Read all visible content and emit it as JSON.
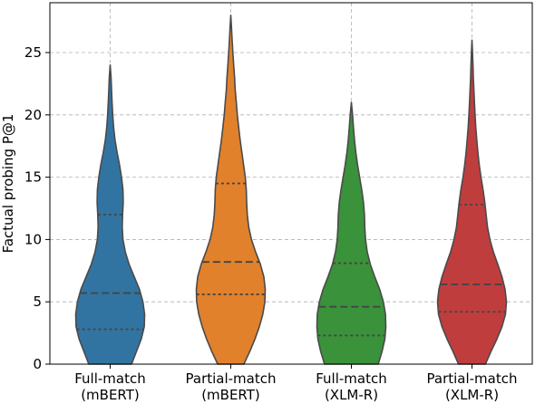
{
  "chart_data": {
    "type": "violin",
    "title": "",
    "xlabel": "",
    "ylabel": "Factual probing P@1",
    "ylim": [
      0,
      29
    ],
    "yticks": [
      0,
      5,
      10,
      15,
      20,
      25
    ],
    "grid": true,
    "categories": [
      {
        "line1": "Full-match",
        "line2": "(mBERT)"
      },
      {
        "line1": "Partial-match",
        "line2": "(mBERT)"
      },
      {
        "line1": "Full-match",
        "line2": "(XLM-R)"
      },
      {
        "line1": "Partial-match",
        "line2": "(XLM-R)"
      }
    ],
    "series": [
      {
        "color": "#3274a1",
        "min": 0,
        "max": 24,
        "q1": 2.8,
        "median": 5.7,
        "q3": 12.0,
        "profile": [
          [
            0,
            0.62
          ],
          [
            1,
            0.76
          ],
          [
            2,
            0.9
          ],
          [
            3,
            0.99
          ],
          [
            4,
            1.0
          ],
          [
            5,
            0.95
          ],
          [
            6,
            0.85
          ],
          [
            7,
            0.7
          ],
          [
            8,
            0.55
          ],
          [
            9,
            0.44
          ],
          [
            10,
            0.37
          ],
          [
            11,
            0.35
          ],
          [
            12,
            0.36
          ],
          [
            13,
            0.38
          ],
          [
            14,
            0.37
          ],
          [
            15,
            0.33
          ],
          [
            16,
            0.27
          ],
          [
            17,
            0.2
          ],
          [
            18,
            0.14
          ],
          [
            19,
            0.1
          ],
          [
            20,
            0.075
          ],
          [
            21,
            0.055
          ],
          [
            22,
            0.04
          ],
          [
            23,
            0.025
          ],
          [
            24,
            0.0
          ]
        ]
      },
      {
        "color": "#e1812c",
        "min": 0,
        "max": 28,
        "q1": 5.6,
        "median": 8.2,
        "q3": 14.5,
        "profile": [
          [
            0,
            0.38
          ],
          [
            1,
            0.55
          ],
          [
            2,
            0.7
          ],
          [
            3,
            0.83
          ],
          [
            4,
            0.93
          ],
          [
            5,
            0.99
          ],
          [
            6,
            1.0
          ],
          [
            7,
            0.96
          ],
          [
            8,
            0.86
          ],
          [
            9,
            0.72
          ],
          [
            10,
            0.6
          ],
          [
            11,
            0.52
          ],
          [
            12,
            0.48
          ],
          [
            13,
            0.46
          ],
          [
            14,
            0.45
          ],
          [
            15,
            0.42
          ],
          [
            16,
            0.37
          ],
          [
            17,
            0.32
          ],
          [
            18,
            0.27
          ],
          [
            19,
            0.23
          ],
          [
            20,
            0.19
          ],
          [
            21,
            0.16
          ],
          [
            22,
            0.13
          ],
          [
            23,
            0.11
          ],
          [
            24,
            0.085
          ],
          [
            25,
            0.06
          ],
          [
            26,
            0.04
          ],
          [
            27,
            0.02
          ],
          [
            28,
            0.0
          ]
        ]
      },
      {
        "color": "#3a923a",
        "min": 0,
        "max": 21,
        "q1": 2.3,
        "median": 4.6,
        "q3": 8.1,
        "profile": [
          [
            0,
            0.78
          ],
          [
            1,
            0.89
          ],
          [
            2,
            0.97
          ],
          [
            3,
            1.0
          ],
          [
            4,
            0.99
          ],
          [
            5,
            0.93
          ],
          [
            6,
            0.82
          ],
          [
            7,
            0.68
          ],
          [
            8,
            0.55
          ],
          [
            9,
            0.46
          ],
          [
            10,
            0.41
          ],
          [
            11,
            0.39
          ],
          [
            12,
            0.38
          ],
          [
            13,
            0.35
          ],
          [
            14,
            0.3
          ],
          [
            15,
            0.24
          ],
          [
            16,
            0.18
          ],
          [
            17,
            0.13
          ],
          [
            18,
            0.09
          ],
          [
            19,
            0.06
          ],
          [
            20,
            0.035
          ],
          [
            21,
            0.0
          ]
        ]
      },
      {
        "color": "#c03d3e",
        "min": 0,
        "max": 26,
        "q1": 4.2,
        "median": 6.4,
        "q3": 12.8,
        "profile": [
          [
            0,
            0.39
          ],
          [
            1,
            0.55
          ],
          [
            2,
            0.72
          ],
          [
            3,
            0.87
          ],
          [
            4,
            0.97
          ],
          [
            5,
            1.0
          ],
          [
            6,
            0.96
          ],
          [
            7,
            0.87
          ],
          [
            8,
            0.75
          ],
          [
            9,
            0.62
          ],
          [
            10,
            0.52
          ],
          [
            11,
            0.45
          ],
          [
            12,
            0.41
          ],
          [
            13,
            0.37
          ],
          [
            14,
            0.32
          ],
          [
            15,
            0.26
          ],
          [
            16,
            0.21
          ],
          [
            17,
            0.17
          ],
          [
            18,
            0.14
          ],
          [
            19,
            0.11
          ],
          [
            20,
            0.09
          ],
          [
            21,
            0.07
          ],
          [
            22,
            0.055
          ],
          [
            23,
            0.04
          ],
          [
            24,
            0.03
          ],
          [
            25,
            0.015
          ],
          [
            26,
            0.0
          ]
        ]
      }
    ]
  }
}
